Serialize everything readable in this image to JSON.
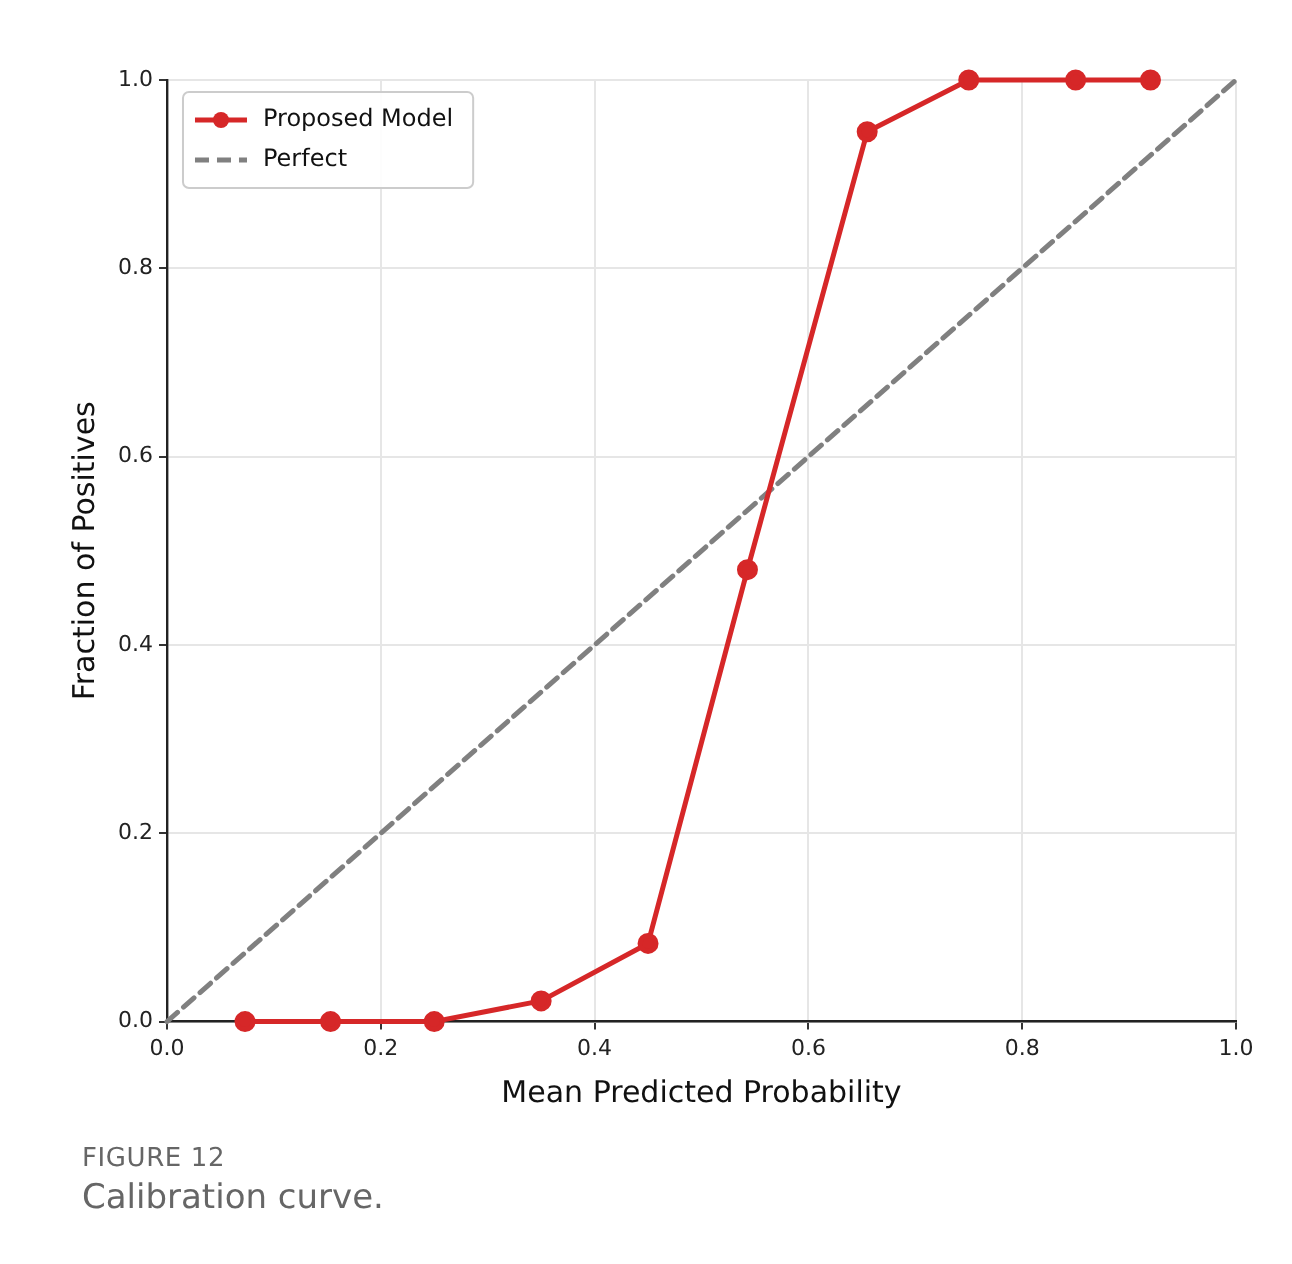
{
  "chart_data": {
    "type": "line",
    "xlabel": "Mean Predicted Probability",
    "ylabel": "Fraction of Positives",
    "xlim": [
      0,
      1
    ],
    "ylim": [
      0,
      1
    ],
    "xticks": [
      {
        "value": 0,
        "label": "0.0"
      },
      {
        "value": 0.2,
        "label": "0.2"
      },
      {
        "value": 0.4,
        "label": "0.4"
      },
      {
        "value": 0.6,
        "label": "0.6"
      },
      {
        "value": 0.8,
        "label": "0.8"
      },
      {
        "value": 1,
        "label": "1.0"
      }
    ],
    "yticks": [
      {
        "value": 0,
        "label": "0.0"
      },
      {
        "value": 0.2,
        "label": "0.2"
      },
      {
        "value": 0.4,
        "label": "0.4"
      },
      {
        "value": 0.6,
        "label": "0.6"
      },
      {
        "value": 0.8,
        "label": "0.8"
      },
      {
        "value": 1,
        "label": "1.0"
      }
    ],
    "grid": true,
    "legend": "top left",
    "marker": "circle",
    "line_style": "solid",
    "series": [
      {
        "name": "Proposed Model",
        "color": "#d62728",
        "x": [
          0.073,
          0.153,
          0.25,
          0.35,
          0.45,
          0.543,
          0.655,
          0.75,
          0.85,
          0.92
        ],
        "values": [
          0,
          0,
          0,
          0.022,
          0.083,
          0.48,
          0.945,
          1,
          1,
          1
        ]
      },
      {
        "name": "Perfect",
        "color": "#808080",
        "x": [
          0,
          1
        ],
        "values": [
          0,
          1
        ],
        "line_style": "dashed",
        "marker": "none"
      }
    ],
    "annotations": [
      "FIGURE 12",
      "Calibration curve."
    ]
  }
}
